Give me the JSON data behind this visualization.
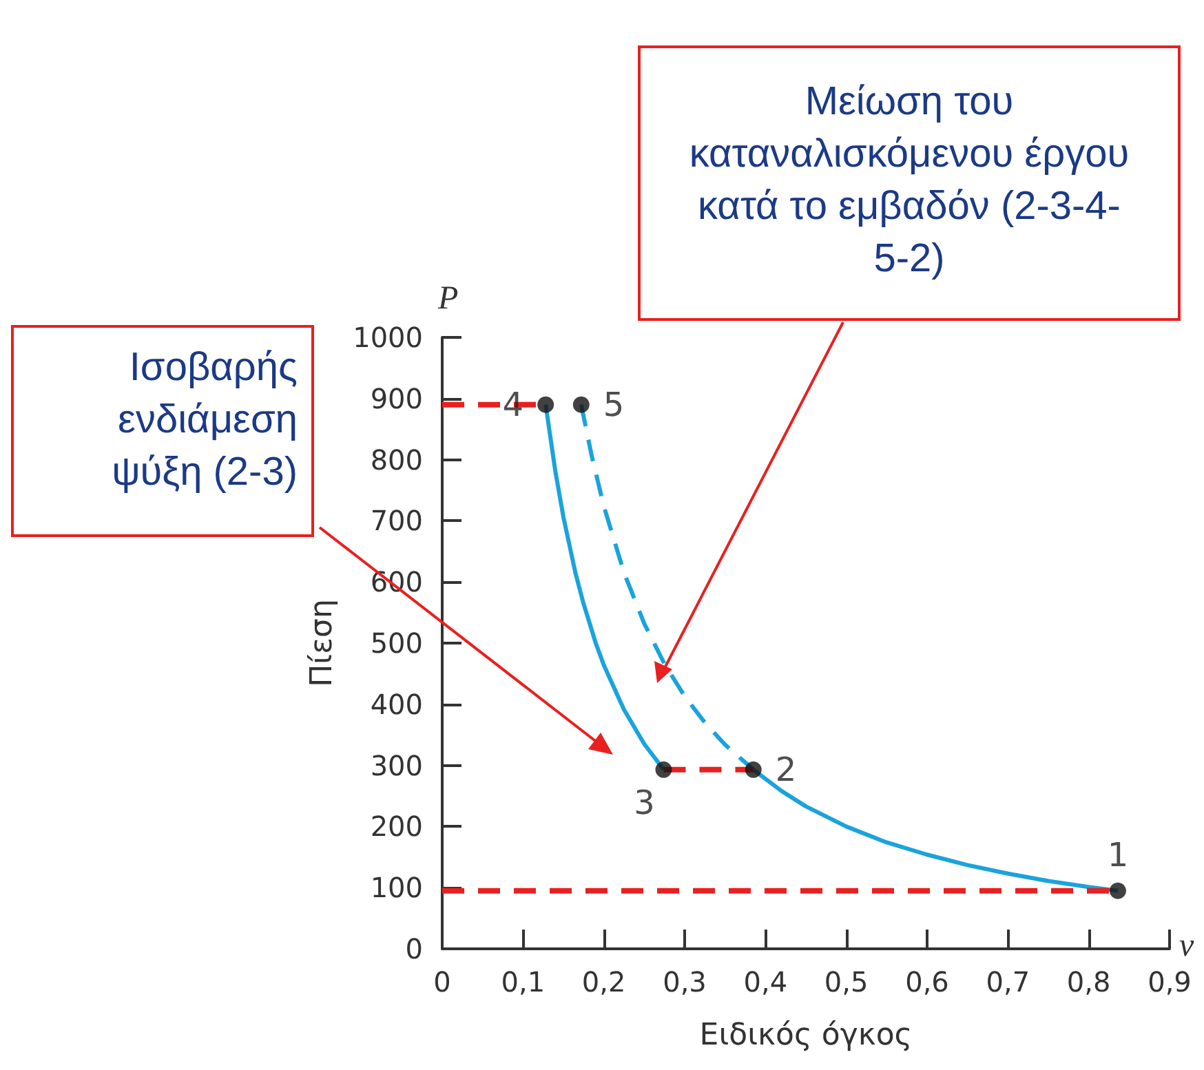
{
  "chart_data": {
    "type": "line",
    "xlabel": "Ειδικός όγκος",
    "ylabel": "Πίεση",
    "xlim": [
      0,
      0.9
    ],
    "ylim": [
      0,
      1000
    ],
    "xticks": [
      0,
      {
        "value": 0.1,
        "label": "0,1"
      },
      {
        "value": 0.2,
        "label": "0,2"
      },
      {
        "value": 0.3,
        "label": "0,3"
      },
      {
        "value": 0.4,
        "label": "0,4"
      },
      {
        "value": 0.5,
        "label": "0,5"
      },
      {
        "value": 0.6,
        "label": "0,6"
      },
      {
        "value": 0.7,
        "label": "0,7"
      },
      {
        "value": 0.8,
        "label": "0,8"
      },
      {
        "value": 0.9,
        "label": "0,9"
      }
    ],
    "yticks": [
      0,
      100,
      200,
      300,
      400,
      500,
      600,
      700,
      800,
      900,
      1000
    ],
    "annotations": [
      "Ισοβαρής ενδιάμεση ψύξη (2-3)",
      "Μείωση του καταναλισκόμενου έργου κατά το εμβαδόν (2-3-4-5-2)",
      "P",
      "v",
      {
        "text": "1",
        "x": 0.836,
        "y": 95
      },
      {
        "text": "2",
        "x": 0.385,
        "y": 293
      },
      {
        "text": "3",
        "x": 0.274,
        "y": 293
      },
      {
        "text": "4",
        "x": 0.128,
        "y": 890
      },
      {
        "text": "5",
        "x": 0.172,
        "y": 890
      }
    ],
    "series": [
      {
        "type": "line",
        "color": "#1aa3dc",
        "line_style": "solid",
        "marker": "none",
        "x": [
          0.385,
          0.42,
          0.45,
          0.5,
          0.55,
          0.6,
          0.65,
          0.7,
          0.75,
          0.8,
          0.836
        ],
        "values": [
          293,
          258,
          233,
          200,
          174,
          154,
          137,
          123,
          111,
          101,
          95
        ]
      },
      {
        "color": "#1aa3dc",
        "line_style": "solid",
        "marker": "none",
        "x": [
          0.128,
          0.14,
          0.15,
          0.165,
          0.175,
          0.19,
          0.2,
          0.225,
          0.25,
          0.274
        ],
        "values": [
          890,
          781,
          706,
          614,
          564,
          500,
          464,
          391,
          335,
          293
        ]
      },
      {
        "color": "#1aa3dc",
        "line_style": "dashed",
        "marker": "none",
        "x": [
          0.172,
          0.185,
          0.2,
          0.225,
          0.25,
          0.275,
          0.3,
          0.325,
          0.35,
          0.385
        ],
        "values": [
          890,
          806,
          724,
          615,
          532,
          466,
          413,
          370,
          334,
          293
        ]
      },
      {
        "color": "#e8201f",
        "line_style": "dashed",
        "marker": "none",
        "x": [
          0,
          0.836
        ],
        "values": [
          95,
          95
        ]
      },
      {
        "color": "#e8201f",
        "line_style": "dashed",
        "marker": "none",
        "x": [
          0,
          0.128
        ],
        "values": [
          890,
          890
        ]
      },
      {
        "color": "#e8201f",
        "line_style": "dashed",
        "marker": "none",
        "x": [
          0.274,
          0.385
        ],
        "values": [
          293,
          293
        ]
      },
      {
        "type": "scatter",
        "color": "#111111",
        "marker": "circle",
        "x": [
          0.836,
          0.385,
          0.274,
          0.128,
          0.172
        ],
        "values": [
          95,
          293,
          293,
          890,
          890
        ]
      }
    ]
  }
}
